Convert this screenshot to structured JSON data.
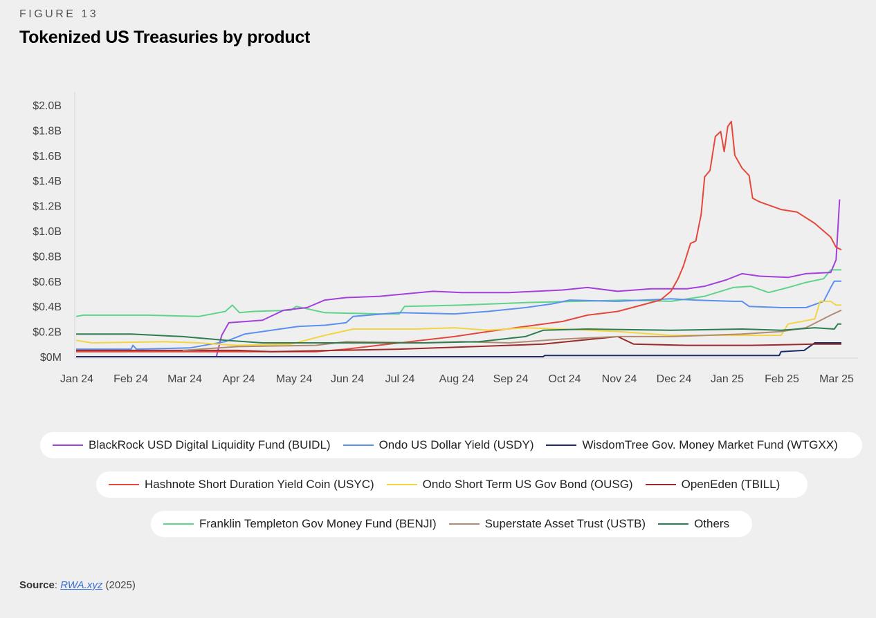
{
  "figure_label": "FIGURE 13",
  "title": "Tokenized US Treasuries by product",
  "source": {
    "label": "Source",
    "link_text": "RWA.xyz",
    "year_text": "(2025)"
  },
  "legend_rows": [
    [
      {
        "name": "BlackRock USD Digital Liquidity Fund (BUIDL)",
        "color": "#a33fdc"
      },
      {
        "name": "Ondo US Dollar Yield (USDY)",
        "color": "#5b8ff0"
      },
      {
        "name": "WisdomTree Gov. Money Market Fund (WTGXX)",
        "color": "#1a2a6c"
      }
    ],
    [
      {
        "name": "Hashnote Short Duration Yield Coin (USYC)",
        "color": "#e4473b"
      },
      {
        "name": "Ondo Short Term US Gov Bond (OUSG)",
        "color": "#f2d445"
      },
      {
        "name": "OpenEden (TBILL)",
        "color": "#9b2a2a"
      }
    ],
    [
      {
        "name": "Franklin Templeton Gov Money Fund (BENJI)",
        "color": "#5ed38a"
      },
      {
        "name": "Superstate Asset Trust (USTB)",
        "color": "#b08a72"
      },
      {
        "name": "Others",
        "color": "#2e7d4f"
      }
    ]
  ],
  "chart_data": {
    "type": "line",
    "x_tick_labels": [
      "Jan 24",
      "Feb 24",
      "Mar 24",
      "Apr 24",
      "May 24",
      "Jun 24",
      "Jul 24",
      "Aug 24",
      "Sep 24",
      "Oct 24",
      "Nov 24",
      "Dec 24",
      "Jan 25",
      "Feb 25",
      "Mar 25"
    ],
    "y_tick_labels": [
      "$0M",
      "$0.2B",
      "$0.4B",
      "$0.6B",
      "$0.8B",
      "$1.0B",
      "$1.2B",
      "$1.4B",
      "$1.6B",
      "$1.8B",
      "$2.0B"
    ],
    "ylim": [
      0,
      2.0
    ],
    "y_unit": "B",
    "series": [
      {
        "name": "Franklin Templeton Gov Money Fund (BENJI)",
        "color": "#5ed38a",
        "points": [
          [
            "2024-01-01",
            0.32
          ],
          [
            "2024-01-05",
            0.33
          ],
          [
            "2024-02-10",
            0.33
          ],
          [
            "2024-03-10",
            0.32
          ],
          [
            "2024-03-25",
            0.36
          ],
          [
            "2024-03-29",
            0.41
          ],
          [
            "2024-04-02",
            0.35
          ],
          [
            "2024-04-10",
            0.36
          ],
          [
            "2024-05-01",
            0.37
          ],
          [
            "2024-05-04",
            0.4
          ],
          [
            "2024-05-20",
            0.35
          ],
          [
            "2024-06-20",
            0.34
          ],
          [
            "2024-07-01",
            0.34
          ],
          [
            "2024-07-04",
            0.4
          ],
          [
            "2024-08-05",
            0.41
          ],
          [
            "2024-09-10",
            0.43
          ],
          [
            "2024-10-10",
            0.44
          ],
          [
            "2024-11-05",
            0.45
          ],
          [
            "2024-12-01",
            0.44
          ],
          [
            "2024-12-20",
            0.48
          ],
          [
            "2025-01-05",
            0.55
          ],
          [
            "2025-01-15",
            0.56
          ],
          [
            "2025-01-25",
            0.51
          ],
          [
            "2025-02-05",
            0.55
          ],
          [
            "2025-02-15",
            0.59
          ],
          [
            "2025-02-25",
            0.62
          ],
          [
            "2025-03-01",
            0.69
          ],
          [
            "2025-03-07",
            0.69
          ]
        ]
      },
      {
        "name": "BlackRock USD Digital Liquidity Fund (BUIDL)",
        "color": "#a33fdc",
        "points": [
          [
            "2024-03-20",
            0.0
          ],
          [
            "2024-03-23",
            0.17
          ],
          [
            "2024-03-27",
            0.27
          ],
          [
            "2024-04-15",
            0.29
          ],
          [
            "2024-04-27",
            0.37
          ],
          [
            "2024-05-10",
            0.39
          ],
          [
            "2024-05-20",
            0.45
          ],
          [
            "2024-06-01",
            0.47
          ],
          [
            "2024-06-20",
            0.48
          ],
          [
            "2024-07-05",
            0.5
          ],
          [
            "2024-07-20",
            0.52
          ],
          [
            "2024-08-05",
            0.51
          ],
          [
            "2024-09-01",
            0.51
          ],
          [
            "2024-10-01",
            0.53
          ],
          [
            "2024-10-15",
            0.55
          ],
          [
            "2024-11-01",
            0.52
          ],
          [
            "2024-11-20",
            0.54
          ],
          [
            "2024-12-10",
            0.54
          ],
          [
            "2024-12-20",
            0.56
          ],
          [
            "2025-01-01",
            0.61
          ],
          [
            "2025-01-10",
            0.66
          ],
          [
            "2025-01-20",
            0.64
          ],
          [
            "2025-02-05",
            0.63
          ],
          [
            "2025-02-15",
            0.66
          ],
          [
            "2025-03-01",
            0.67
          ],
          [
            "2025-03-04",
            0.77
          ],
          [
            "2025-03-06",
            1.25
          ]
        ]
      },
      {
        "name": "Ondo US Dollar Yield (USDY)",
        "color": "#5b8ff0",
        "points": [
          [
            "2024-01-01",
            0.06
          ],
          [
            "2024-02-01",
            0.06
          ],
          [
            "2024-02-02",
            0.09
          ],
          [
            "2024-02-04",
            0.06
          ],
          [
            "2024-03-05",
            0.07
          ],
          [
            "2024-03-25",
            0.12
          ],
          [
            "2024-04-05",
            0.18
          ],
          [
            "2024-04-20",
            0.21
          ],
          [
            "2024-05-05",
            0.24
          ],
          [
            "2024-05-20",
            0.25
          ],
          [
            "2024-06-01",
            0.27
          ],
          [
            "2024-06-05",
            0.32
          ],
          [
            "2024-07-01",
            0.35
          ],
          [
            "2024-08-01",
            0.34
          ],
          [
            "2024-08-20",
            0.36
          ],
          [
            "2024-09-10",
            0.39
          ],
          [
            "2024-09-25",
            0.42
          ],
          [
            "2024-10-05",
            0.45
          ],
          [
            "2024-11-01",
            0.44
          ],
          [
            "2024-12-01",
            0.46
          ],
          [
            "2024-12-15",
            0.45
          ],
          [
            "2025-01-05",
            0.44
          ],
          [
            "2025-01-10",
            0.44
          ],
          [
            "2025-01-14",
            0.4
          ],
          [
            "2025-02-01",
            0.39
          ],
          [
            "2025-02-15",
            0.39
          ],
          [
            "2025-02-25",
            0.44
          ],
          [
            "2025-03-01",
            0.55
          ],
          [
            "2025-03-03",
            0.6
          ],
          [
            "2025-03-07",
            0.6
          ]
        ]
      },
      {
        "name": "WisdomTree Gov. Money Market Fund (WTGXX)",
        "color": "#1a2a6c",
        "points": [
          [
            "2024-01-01",
            0.0
          ],
          [
            "2024-09-20",
            0.0
          ],
          [
            "2024-09-21",
            0.01
          ],
          [
            "2025-01-31",
            0.01
          ],
          [
            "2025-02-01",
            0.04
          ],
          [
            "2025-02-14",
            0.05
          ],
          [
            "2025-02-20",
            0.11
          ],
          [
            "2025-03-07",
            0.11
          ]
        ]
      },
      {
        "name": "Hashnote Short Duration Yield Coin (USYC)",
        "color": "#e4473b",
        "points": [
          [
            "2024-01-01",
            0.04
          ],
          [
            "2024-05-15",
            0.04
          ],
          [
            "2024-06-01",
            0.06
          ],
          [
            "2024-07-01",
            0.11
          ],
          [
            "2024-08-01",
            0.16
          ],
          [
            "2024-08-20",
            0.2
          ],
          [
            "2024-09-10",
            0.24
          ],
          [
            "2024-10-01",
            0.28
          ],
          [
            "2024-10-15",
            0.33
          ],
          [
            "2024-11-01",
            0.36
          ],
          [
            "2024-11-25",
            0.45
          ],
          [
            "2024-12-01",
            0.52
          ],
          [
            "2024-12-05",
            0.62
          ],
          [
            "2024-12-08",
            0.72
          ],
          [
            "2024-12-12",
            0.9
          ],
          [
            "2024-12-15",
            0.92
          ],
          [
            "2024-12-18",
            1.13
          ],
          [
            "2024-12-20",
            1.43
          ],
          [
            "2024-12-23",
            1.48
          ],
          [
            "2024-12-26",
            1.75
          ],
          [
            "2024-12-29",
            1.79
          ],
          [
            "2024-12-31",
            1.63
          ],
          [
            "2025-01-02",
            1.83
          ],
          [
            "2025-01-04",
            1.87
          ],
          [
            "2025-01-06",
            1.6
          ],
          [
            "2025-01-10",
            1.5
          ],
          [
            "2025-01-14",
            1.44
          ],
          [
            "2025-01-16",
            1.26
          ],
          [
            "2025-01-20",
            1.23
          ],
          [
            "2025-02-01",
            1.17
          ],
          [
            "2025-02-10",
            1.15
          ],
          [
            "2025-02-20",
            1.06
          ],
          [
            "2025-03-01",
            0.95
          ],
          [
            "2025-03-04",
            0.87
          ],
          [
            "2025-03-07",
            0.85
          ]
        ]
      },
      {
        "name": "Ondo Short Term US Gov Bond (OUSG)",
        "color": "#f2d445",
        "points": [
          [
            "2024-01-01",
            0.13
          ],
          [
            "2024-01-10",
            0.11
          ],
          [
            "2024-02-20",
            0.12
          ],
          [
            "2024-03-10",
            0.11
          ],
          [
            "2024-04-01",
            0.09
          ],
          [
            "2024-05-01",
            0.1
          ],
          [
            "2024-05-20",
            0.17
          ],
          [
            "2024-06-05",
            0.22
          ],
          [
            "2024-07-10",
            0.22
          ],
          [
            "2024-08-01",
            0.23
          ],
          [
            "2024-08-20",
            0.21
          ],
          [
            "2024-09-10",
            0.23
          ],
          [
            "2024-10-01",
            0.22
          ],
          [
            "2024-11-01",
            0.2
          ],
          [
            "2024-12-01",
            0.17
          ],
          [
            "2025-01-10",
            0.17
          ],
          [
            "2025-02-01",
            0.17
          ],
          [
            "2025-02-05",
            0.26
          ],
          [
            "2025-02-20",
            0.3
          ],
          [
            "2025-02-23",
            0.44
          ],
          [
            "2025-03-01",
            0.44
          ],
          [
            "2025-03-04",
            0.41
          ],
          [
            "2025-03-07",
            0.41
          ]
        ]
      },
      {
        "name": "OpenEden (TBILL)",
        "color": "#9b2a2a",
        "points": [
          [
            "2024-01-01",
            0.05
          ],
          [
            "2024-04-01",
            0.05
          ],
          [
            "2024-04-20",
            0.04
          ],
          [
            "2024-07-01",
            0.06
          ],
          [
            "2024-09-20",
            0.1
          ],
          [
            "2024-11-01",
            0.16
          ],
          [
            "2024-11-10",
            0.1
          ],
          [
            "2024-12-10",
            0.09
          ],
          [
            "2025-01-15",
            0.09
          ],
          [
            "2025-02-20",
            0.1
          ],
          [
            "2025-03-07",
            0.1
          ]
        ]
      },
      {
        "name": "Superstate Asset Trust (USTB)",
        "color": "#b08a72",
        "points": [
          [
            "2024-03-01",
            0.05
          ],
          [
            "2024-04-01",
            0.08
          ],
          [
            "2024-05-15",
            0.09
          ],
          [
            "2024-06-01",
            0.12
          ],
          [
            "2024-07-15",
            0.11
          ],
          [
            "2024-08-05",
            0.12
          ],
          [
            "2024-09-01",
            0.11
          ],
          [
            "2024-10-01",
            0.14
          ],
          [
            "2024-11-01",
            0.16
          ],
          [
            "2024-12-01",
            0.16
          ],
          [
            "2025-01-10",
            0.18
          ],
          [
            "2025-02-01",
            0.2
          ],
          [
            "2025-02-15",
            0.23
          ],
          [
            "2025-03-01",
            0.33
          ],
          [
            "2025-03-07",
            0.37
          ]
        ]
      },
      {
        "name": "Others",
        "color": "#2e7d4f",
        "points": [
          [
            "2024-01-01",
            0.18
          ],
          [
            "2024-02-01",
            0.18
          ],
          [
            "2024-03-01",
            0.16
          ],
          [
            "2024-03-25",
            0.13
          ],
          [
            "2024-04-15",
            0.11
          ],
          [
            "2024-06-01",
            0.11
          ],
          [
            "2024-07-15",
            0.11
          ],
          [
            "2024-08-15",
            0.12
          ],
          [
            "2024-09-10",
            0.16
          ],
          [
            "2024-09-20",
            0.21
          ],
          [
            "2024-10-15",
            0.22
          ],
          [
            "2024-12-01",
            0.21
          ],
          [
            "2025-01-10",
            0.22
          ],
          [
            "2025-02-01",
            0.21
          ],
          [
            "2025-02-20",
            0.23
          ],
          [
            "2025-03-03",
            0.22
          ],
          [
            "2025-03-05",
            0.26
          ],
          [
            "2025-03-07",
            0.26
          ]
        ]
      }
    ]
  }
}
